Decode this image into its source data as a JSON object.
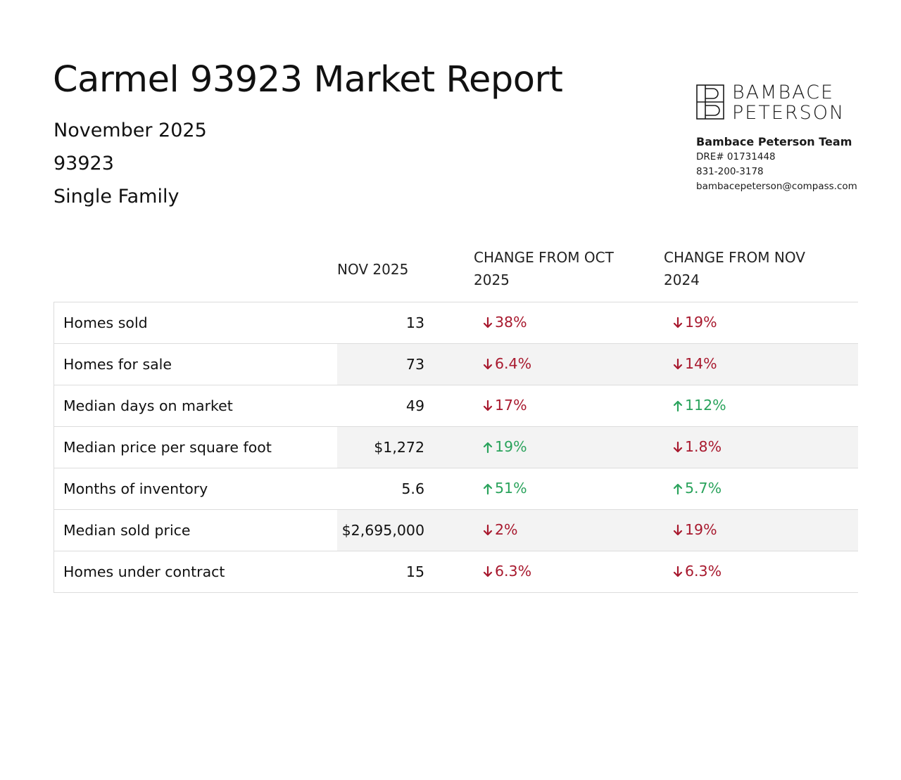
{
  "report": {
    "title": "Carmel 93923 Market Report",
    "month": "November 2025",
    "zip": "93923",
    "property_type": "Single Family"
  },
  "brand": {
    "line1": "BAMBACE",
    "line2": "PETERSON",
    "team_name": "Bambace Peterson Team",
    "dre": "DRE# 01731448",
    "phone": "831-200-3178",
    "email": "bambacepeterson@compass.com"
  },
  "table": {
    "headers": {
      "metric": "",
      "current": "NOV 2025",
      "change_prev_month_line1": "CHANGE FROM OCT",
      "change_prev_month_line2": "2025",
      "change_prev_year_line1": "CHANGE FROM NOV",
      "change_prev_year_line2": "2024"
    },
    "rows": [
      {
        "metric": "Homes sold",
        "value": "13",
        "change_oct": {
          "dir": "down",
          "text": "38%"
        },
        "change_nov": {
          "dir": "down",
          "text": "19%"
        }
      },
      {
        "metric": "Homes for sale",
        "value": "73",
        "change_oct": {
          "dir": "down",
          "text": "6.4%"
        },
        "change_nov": {
          "dir": "down",
          "text": "14%"
        }
      },
      {
        "metric": "Median days on market",
        "value": "49",
        "change_oct": {
          "dir": "down",
          "text": "17%"
        },
        "change_nov": {
          "dir": "up",
          "text": "112%"
        }
      },
      {
        "metric": "Median price per square foot",
        "value": "$1,272",
        "change_oct": {
          "dir": "up",
          "text": "19%"
        },
        "change_nov": {
          "dir": "down",
          "text": "1.8%"
        }
      },
      {
        "metric": "Months of inventory",
        "value": "5.6",
        "change_oct": {
          "dir": "up",
          "text": "51%"
        },
        "change_nov": {
          "dir": "up",
          "text": "5.7%"
        }
      },
      {
        "metric": "Median sold price",
        "value": "$2,695,000",
        "change_oct": {
          "dir": "down",
          "text": "2%"
        },
        "change_nov": {
          "dir": "down",
          "text": "19%"
        }
      },
      {
        "metric": "Homes under contract",
        "value": "15",
        "change_oct": {
          "dir": "down",
          "text": "6.3%"
        },
        "change_nov": {
          "dir": "down",
          "text": "6.3%"
        }
      }
    ]
  },
  "colors": {
    "down": "#a8192e",
    "up": "#2aa35c",
    "alt_row": "#f3f3f3",
    "rule": "#dcdcdc"
  },
  "icons": {
    "down": "arrow-down-icon",
    "up": "arrow-up-icon",
    "logo": "bp-monogram-logo"
  }
}
